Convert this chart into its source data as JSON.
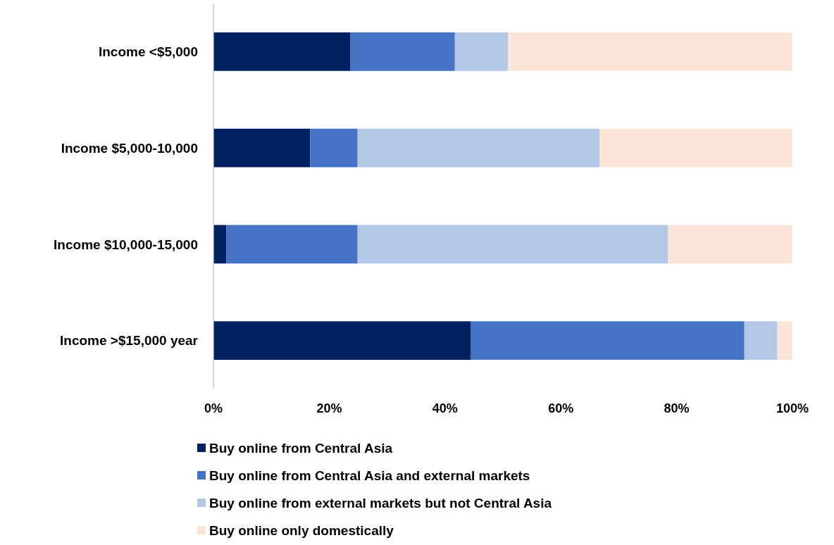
{
  "chart_data": {
    "type": "bar",
    "orientation": "horizontal",
    "stacked": true,
    "categories": [
      "Income <$5,000",
      "Income $5,000-10,000",
      "Income $10,000-15,000",
      "Income >$15,000 year"
    ],
    "series": [
      {
        "name": "Buy online from Central Asia",
        "color": "#002060",
        "values": [
          23.6,
          16.7,
          2.2,
          44.4
        ]
      },
      {
        "name": "Buy online from Central Asia and external markets",
        "color": "#4472c4",
        "values": [
          18.1,
          8.2,
          22.7,
          47.3
        ]
      },
      {
        "name": "Buy online from external markets but not Central Asia",
        "color": "#b4c7e7",
        "values": [
          9.2,
          41.8,
          53.6,
          5.7
        ]
      },
      {
        "name": "Buy online only domestically",
        "color": "#fbe5d6",
        "values": [
          49.1,
          33.3,
          21.5,
          2.6
        ]
      }
    ],
    "xlim": [
      0,
      100
    ],
    "xticks": [
      {
        "value": 0,
        "label": "0%"
      },
      {
        "value": 20,
        "label": "20%"
      },
      {
        "value": 40,
        "label": "40%"
      },
      {
        "value": 60,
        "label": "60%"
      },
      {
        "value": 80,
        "label": "80%"
      },
      {
        "value": 100,
        "label": "100%"
      }
    ],
    "legend": "bottom",
    "grid": false
  }
}
